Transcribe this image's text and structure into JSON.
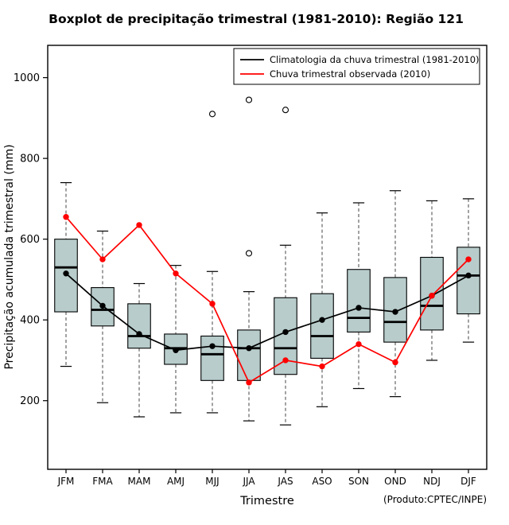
{
  "chart_data": {
    "type": "boxplot",
    "title": "Boxplot de precipitação trimestral (1981-2010): Região 121",
    "xlabel": "Trimestre",
    "ylabel": "Precipitação acumulada trimestral (mm)",
    "note": "(Produto:CPTEC/INPE)",
    "categories": [
      "JFM",
      "FMA",
      "MAM",
      "AMJ",
      "MJJ",
      "JJA",
      "JAS",
      "ASO",
      "SON",
      "OND",
      "NDJ",
      "DJF"
    ],
    "ylim": [
      30,
      1080
    ],
    "yticks": [
      200,
      400,
      600,
      800,
      1000
    ],
    "grid": false,
    "legend_position": "top-right",
    "box_fill": "#b7cccb",
    "box_stroke": "#000000",
    "boxes": [
      {
        "low": 285,
        "q1": 420,
        "median": 530,
        "q3": 600,
        "high": 740,
        "outliers": []
      },
      {
        "low": 195,
        "q1": 385,
        "median": 425,
        "q3": 480,
        "high": 620,
        "outliers": []
      },
      {
        "low": 160,
        "q1": 330,
        "median": 360,
        "q3": 440,
        "high": 490,
        "outliers": []
      },
      {
        "low": 170,
        "q1": 290,
        "median": 330,
        "q3": 365,
        "high": 535,
        "outliers": []
      },
      {
        "low": 170,
        "q1": 250,
        "median": 315,
        "q3": 360,
        "high": 520,
        "outliers": [
          910
        ]
      },
      {
        "low": 150,
        "q1": 250,
        "median": 330,
        "q3": 375,
        "high": 470,
        "outliers": [
          565,
          945
        ]
      },
      {
        "low": 140,
        "q1": 265,
        "median": 330,
        "q3": 455,
        "high": 585,
        "outliers": [
          920
        ]
      },
      {
        "low": 185,
        "q1": 305,
        "median": 360,
        "q3": 465,
        "high": 665,
        "outliers": []
      },
      {
        "low": 230,
        "q1": 370,
        "median": 405,
        "q3": 525,
        "high": 690,
        "outliers": []
      },
      {
        "low": 210,
        "q1": 345,
        "median": 395,
        "q3": 505,
        "high": 720,
        "outliers": []
      },
      {
        "low": 300,
        "q1": 375,
        "median": 435,
        "q3": 555,
        "high": 695,
        "outliers": []
      },
      {
        "low": 345,
        "q1": 415,
        "median": 510,
        "q3": 580,
        "high": 700,
        "outliers": []
      }
    ],
    "series": [
      {
        "name": "Climatologia da chuva trimestral (1981-2010)",
        "color": "#000000",
        "values": [
          515,
          435,
          365,
          325,
          335,
          330,
          370,
          400,
          430,
          420,
          460,
          510
        ]
      },
      {
        "name": "Chuva trimestral observada (2010)",
        "color": "#ff0000",
        "values": [
          655,
          550,
          635,
          515,
          440,
          245,
          300,
          285,
          340,
          295,
          460,
          550
        ]
      }
    ]
  }
}
